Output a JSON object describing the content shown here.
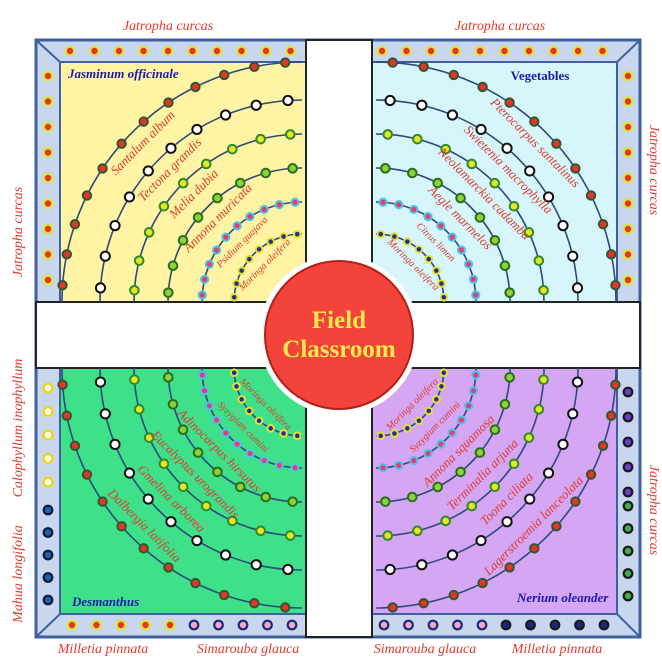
{
  "colors": {
    "frame_border": "#3f5f9f",
    "frame_fill": "#c8d6ee",
    "path_fill": "#ffffff",
    "q_top_left": "#fff4a3",
    "q_top_right": "#d6f6fb",
    "q_bottom_left": "#3fe08a",
    "q_bottom_right": "#d5a6f3",
    "arc_line": "#2c4a7a",
    "center_fill": "#f2443a",
    "center_ring": "#ffffff",
    "center_text": "#ffe94d",
    "label_red": "#e03a2c",
    "label_blue": "#1a1aa8"
  },
  "center": {
    "line1": "Field",
    "line2": "Classroom"
  },
  "borders": {
    "top_left": "Jatropha curcas",
    "top_right": "Jatropha curcas",
    "left_top": "Jatropha curcas",
    "right_top": "Jatropha curcas",
    "right_bottom": "Jatropha curcas",
    "left_mid": "Calophyllum  inophyllum",
    "left_bottom": "Mahua longifolia",
    "bottom_1": "Milletia pinnata",
    "bottom_2": "Simarouba glauca",
    "bottom_3": "Simarouba glauca",
    "bottom_4": "Milletia pinnata"
  },
  "quadrants": {
    "top_left": {
      "title": "Jasminum officinale",
      "arcs": [
        {
          "label": "Santalum album",
          "dot": "red"
        },
        {
          "label": "Tectona grandis",
          "dot": "white"
        },
        {
          "label": "Melia dubia",
          "dot": "yellowgreen"
        },
        {
          "label": "Annona muricata",
          "dot": "green"
        },
        {
          "label": "Psidium guajava",
          "dot": "cyanred"
        },
        {
          "label": "Moringa oleifera",
          "dot": "blue"
        }
      ]
    },
    "top_right": {
      "title": "Vegetables",
      "arcs": [
        {
          "label": "Pterocarpus santalinus",
          "dot": "red"
        },
        {
          "label": "Swietenia macrophylla",
          "dot": "white"
        },
        {
          "label": "Neolamarckia cadamba",
          "dot": "yellowgreen"
        },
        {
          "label": "Aegle marmelos",
          "dot": "green"
        },
        {
          "label": "Citrus limon",
          "dot": "cyanred"
        },
        {
          "label": "Moringa oleifera",
          "dot": "blue"
        }
      ]
    },
    "bottom_left": {
      "title": "Desmanthus",
      "arcs": [
        {
          "label": "Dalbergia latifolia",
          "dot": "red"
        },
        {
          "label": "Gmelina arborea",
          "dot": "white"
        },
        {
          "label": "Eucalyptus urograndis",
          "dot": "yellowgreen"
        },
        {
          "label": "Adinocarpus hirsutus",
          "dot": "green"
        },
        {
          "label": "Syzygium cumini",
          "dot": "cyanred"
        },
        {
          "label": "Moringa oleifera",
          "dot": "blue"
        }
      ]
    },
    "bottom_right": {
      "title": "Nerium oleander",
      "arcs": [
        {
          "label": "Lagerstroemia lanceolata",
          "dot": "red"
        },
        {
          "label": "Toona ciliata",
          "dot": "white"
        },
        {
          "label": "Terminalia arjuna",
          "dot": "yellowgreen"
        },
        {
          "label": "Annona squamosa",
          "dot": "green"
        },
        {
          "label": "Syzygium cumini",
          "dot": "cyanred"
        },
        {
          "label": "Moringa oleifera",
          "dot": "blue"
        }
      ]
    }
  },
  "dot_styles": {
    "red": {
      "fill": "#e8332a",
      "stroke": "#2c5a2c"
    },
    "white": {
      "fill": "#ffffff",
      "stroke": "#111111"
    },
    "yellowgreen": {
      "fill": "#e6e622",
      "stroke": "#2f8a2f"
    },
    "green": {
      "fill": "#8cd23a",
      "stroke": "#2b6e1a"
    },
    "cyanred": {
      "fill": "#ee3a6a",
      "stroke": "#45c6f0"
    },
    "blue": {
      "fill": "#1d2f9a",
      "stroke": "#e8e02a"
    },
    "border_tl": {
      "fill": "#e8332a",
      "stroke": "#d9e63a"
    },
    "border_left_mid": {
      "fill": "#ffffff",
      "stroke": "#f0d800"
    },
    "border_left_bot": {
      "fill": "#1f5fa8",
      "stroke": "#0a1a3a"
    },
    "border_right_bot1": {
      "fill": "#6a3fc8",
      "stroke": "#1a1a1a"
    },
    "border_right_bot2": {
      "fill": "#3cb04a",
      "stroke": "#1a1a1a"
    },
    "border_bottom_sim": {
      "fill": "#f4a8c8",
      "stroke": "#1a2a7a"
    },
    "border_bottom_mil": {
      "fill": "#1a2a7a",
      "stroke": "#1a1a1a"
    }
  }
}
